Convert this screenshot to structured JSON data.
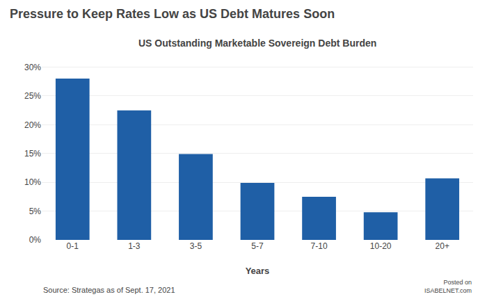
{
  "chart_data": {
    "type": "bar",
    "title": "Pressure to Keep Rates Low as US Debt Matures Soon",
    "subtitle": "US Outstanding Marketable Sovereign Debt Burden",
    "xlabel": "Years",
    "categories": [
      "0-1",
      "1-3",
      "3-5",
      "5-7",
      "7-10",
      "10-20",
      "20+"
    ],
    "values": [
      0.28,
      0.225,
      0.149,
      0.099,
      0.075,
      0.048,
      0.107
    ],
    "color": "#1F5FA6",
    "ylim": [
      0,
      0.32
    ],
    "yticks": [
      {
        "value": 0.0,
        "label": "0%"
      },
      {
        "value": 0.05,
        "label": "5%"
      },
      {
        "value": 0.1,
        "label": "10%"
      },
      {
        "value": 0.15,
        "label": "15%"
      },
      {
        "value": 0.2,
        "label": "20%"
      },
      {
        "value": 0.25,
        "label": "25%"
      },
      {
        "value": 0.3,
        "label": "30%"
      }
    ],
    "grid": true,
    "annotations": [
      "Source: Strategas as of Sept. 17, 2021",
      "Posted on",
      "ISABELNET.com"
    ]
  }
}
